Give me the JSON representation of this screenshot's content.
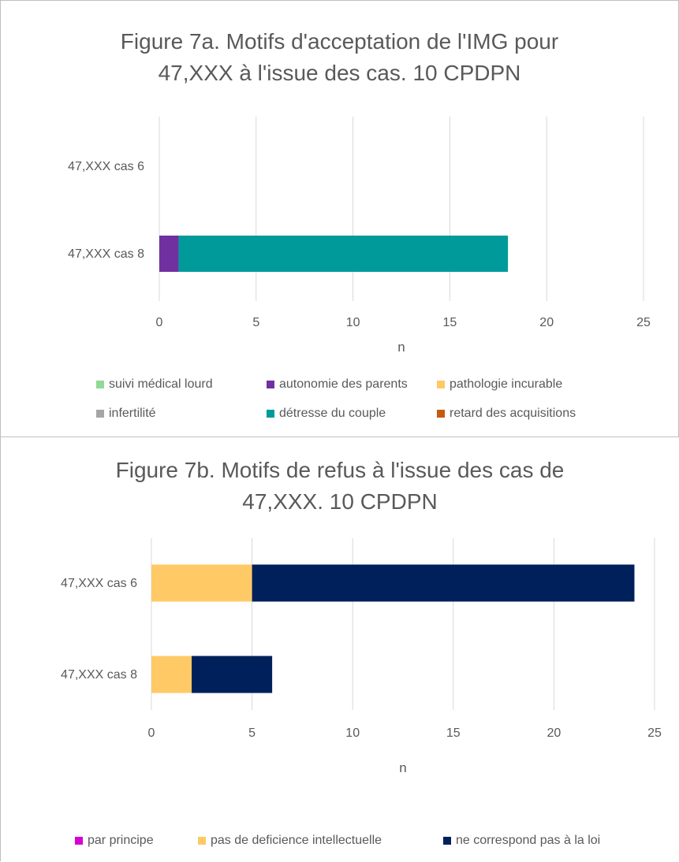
{
  "chart_data": [
    {
      "type": "bar",
      "orientation": "horizontal",
      "stacked": true,
      "title_line1": "Figure 7a. Motifs d'acceptation de l'IMG pour",
      "title_line2": "47,XXX à l'issue des cas. 10 CPDPN",
      "xlabel": "n",
      "ylabel": "",
      "xlim": [
        0,
        25
      ],
      "x_ticks": [
        "0",
        "5",
        "10",
        "15",
        "20",
        "25"
      ],
      "categories": [
        "47,XXX cas 6",
        "47,XXX cas 8"
      ],
      "grid": true,
      "legend_position": "bottom",
      "series": [
        {
          "name": "suivi médical lourd",
          "color": "#92d994",
          "values": [
            0,
            0
          ]
        },
        {
          "name": "autonomie des parents",
          "color": "#7030a0",
          "values": [
            0,
            1
          ]
        },
        {
          "name": "pathologie incurable",
          "color": "#ffc966",
          "values": [
            0,
            0
          ]
        },
        {
          "name": "infertilité",
          "color": "#a5a5a5",
          "values": [
            0,
            0
          ]
        },
        {
          "name": "détresse du couple",
          "color": "#009a9a",
          "values": [
            0,
            17
          ]
        },
        {
          "name": "retard des acquisitions",
          "color": "#c55a11",
          "values": [
            0,
            0
          ]
        }
      ]
    },
    {
      "type": "bar",
      "orientation": "horizontal",
      "stacked": true,
      "title_line1": "Figure 7b. Motifs de refus à l'issue des cas de",
      "title_line2": "47,XXX. 10 CPDPN",
      "xlabel": "n",
      "ylabel": "",
      "xlim": [
        0,
        25
      ],
      "x_ticks": [
        "0",
        "5",
        "10",
        "15",
        "20",
        "25"
      ],
      "categories": [
        "47,XXX cas 6",
        "47,XXX cas 8"
      ],
      "grid": true,
      "legend_position": "bottom",
      "series": [
        {
          "name": "par principe",
          "color": "#d400d4",
          "values": [
            0,
            0
          ]
        },
        {
          "name": "pas de deficience intellectuelle",
          "color": "#ffca66",
          "values": [
            5,
            2
          ]
        },
        {
          "name": "ne correspond pas à la loi",
          "color": "#00205b",
          "values": [
            19,
            4
          ]
        }
      ]
    }
  ]
}
